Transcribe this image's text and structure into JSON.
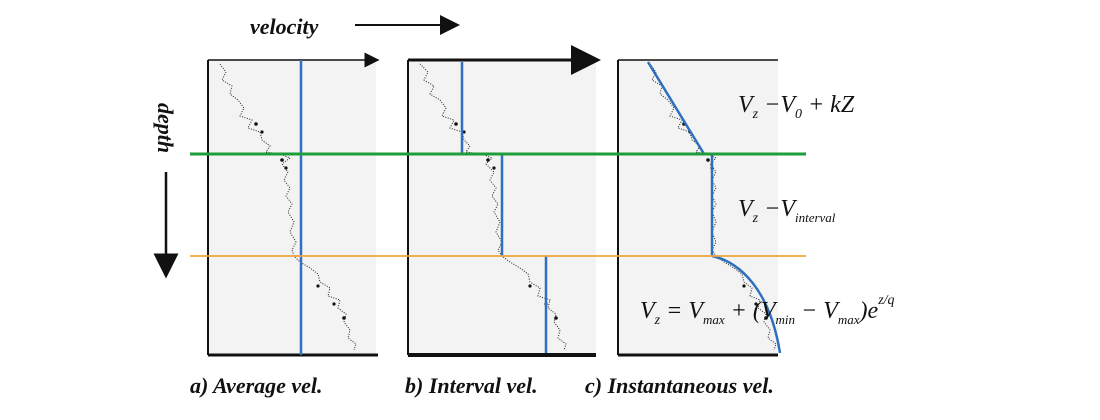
{
  "axes": {
    "velocity_label": "velocity",
    "depth_label": "depth"
  },
  "panels": [
    {
      "id": "a",
      "caption": "a) Average  vel."
    },
    {
      "id": "b",
      "caption": "b) Interval vel."
    },
    {
      "id": "c",
      "caption": "c) Instantaneous vel."
    }
  ],
  "equations": {
    "eq1": {
      "lhs": "V",
      "lhs_sub": "z",
      "op": " −V",
      "sub2": "0",
      "rest": " + kZ"
    },
    "eq2": {
      "lhs": "V",
      "lhs_sub": "z",
      "op": " −V",
      "sub2": "interval"
    },
    "eq3": {
      "lhs": "V",
      "lhs_sub": "z",
      "eq": " = V",
      "sub_max": "max",
      "plus": " + (V",
      "sub_min": "min",
      "minus": " − V",
      "sub_max2": "max",
      "close": ")e",
      "exp": "z/q"
    }
  },
  "colors": {
    "average_line": "#2f6fbf",
    "horizon_1": "#1e9e3a",
    "horizon_2": "#f0a53c",
    "panel_bg": "#f3f3f3",
    "frame": "#111111"
  }
}
